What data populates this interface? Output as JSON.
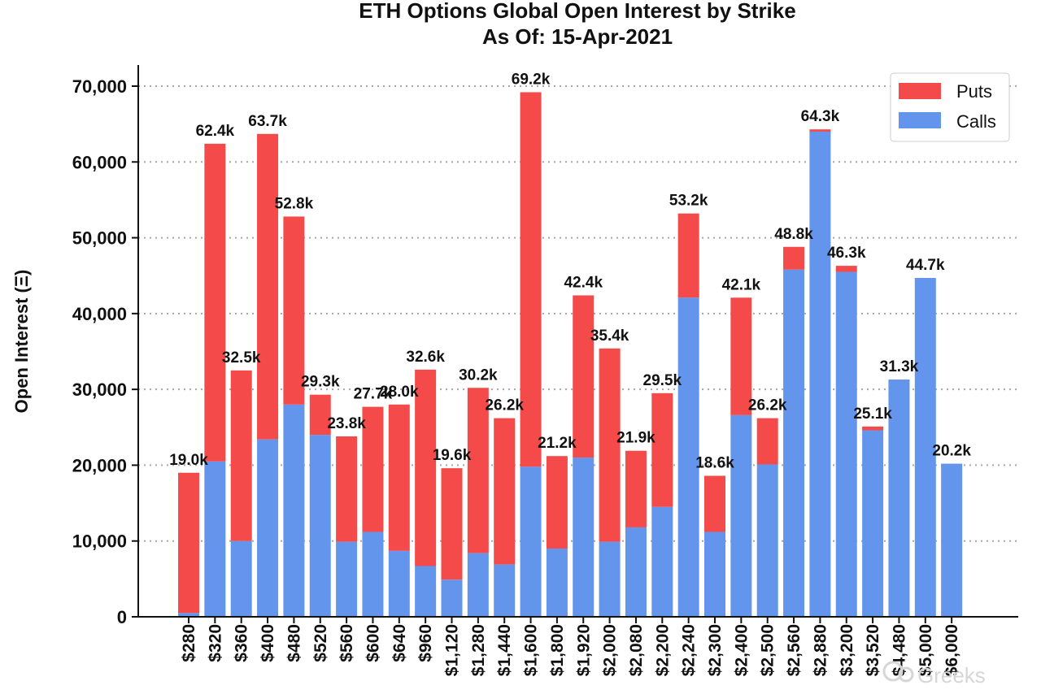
{
  "chart_data": {
    "type": "bar",
    "stacked": true,
    "title": "ETH Options Global Open Interest by Strike",
    "subtitle": "As Of: 15-Apr-2021",
    "xlabel": "",
    "ylabel": "Open Interest (Ξ)",
    "ylim": [
      0,
      72000
    ],
    "yticks": [
      0,
      10000,
      20000,
      30000,
      40000,
      50000,
      60000,
      70000
    ],
    "ytick_labels": [
      "0",
      "10,000",
      "20,000",
      "30,000",
      "40,000",
      "50,000",
      "60,000",
      "70,000"
    ],
    "grid": "horizontal dotted",
    "legend_position": "top-right",
    "categories": [
      "$280",
      "$320",
      "$360",
      "$400",
      "$480",
      "$520",
      "$560",
      "$600",
      "$640",
      "$960",
      "$1,120",
      "$1,280",
      "$1,440",
      "$1,600",
      "$1,800",
      "$1,920",
      "$2,000",
      "$2,080",
      "$2,200",
      "$2,240",
      "$2,300",
      "$2,400",
      "$2,500",
      "$2,560",
      "$2,880",
      "$3,200",
      "$3,520",
      "$4,480",
      "$5,000",
      "$6,000"
    ],
    "series": [
      {
        "name": "Calls",
        "color": "#6495ed",
        "values": [
          500,
          20500,
          10000,
          23400,
          28000,
          24000,
          9900,
          11200,
          8700,
          6700,
          4900,
          8400,
          6900,
          19800,
          9000,
          21000,
          9900,
          11800,
          14500,
          42100,
          11200,
          26600,
          20100,
          45800,
          64000,
          45500,
          24600,
          31300,
          44700,
          20200
        ]
      },
      {
        "name": "Puts",
        "color": "#f44a4a",
        "values": [
          18500,
          41900,
          22500,
          40300,
          24800,
          5300,
          13900,
          16500,
          19300,
          25900,
          14700,
          21800,
          19300,
          49400,
          12200,
          21400,
          25500,
          10100,
          15000,
          11100,
          7400,
          15500,
          6100,
          3000,
          300,
          800,
          500,
          0,
          0,
          0
        ]
      }
    ],
    "totals": [
      19000,
      62400,
      32500,
      63700,
      52800,
      29300,
      23800,
      27700,
      28000,
      32600,
      19600,
      30200,
      26200,
      69200,
      21200,
      42400,
      35400,
      21900,
      29500,
      53200,
      18600,
      42100,
      26200,
      48800,
      64300,
      46300,
      25100,
      31300,
      44700,
      20200
    ],
    "total_labels": [
      "19.0k",
      "62.4k",
      "32.5k",
      "63.7k",
      "52.8k",
      "29.3k",
      "23.8k",
      "27.7k",
      "28.0k",
      "32.6k",
      "19.6k",
      "30.2k",
      "26.2k",
      "69.2k",
      "21.2k",
      "42.4k",
      "35.4k",
      "21.9k",
      "29.5k",
      "53.2k",
      "18.6k",
      "42.1k",
      "26.2k",
      "48.8k",
      "64.3k",
      "46.3k",
      "25.1k",
      "31.3k",
      "44.7k",
      "20.2k"
    ],
    "legend": [
      {
        "name": "Puts",
        "color": "#f44a4a"
      },
      {
        "name": "Calls",
        "color": "#6495ed"
      }
    ]
  },
  "watermark": {
    "text": "Greeks"
  }
}
